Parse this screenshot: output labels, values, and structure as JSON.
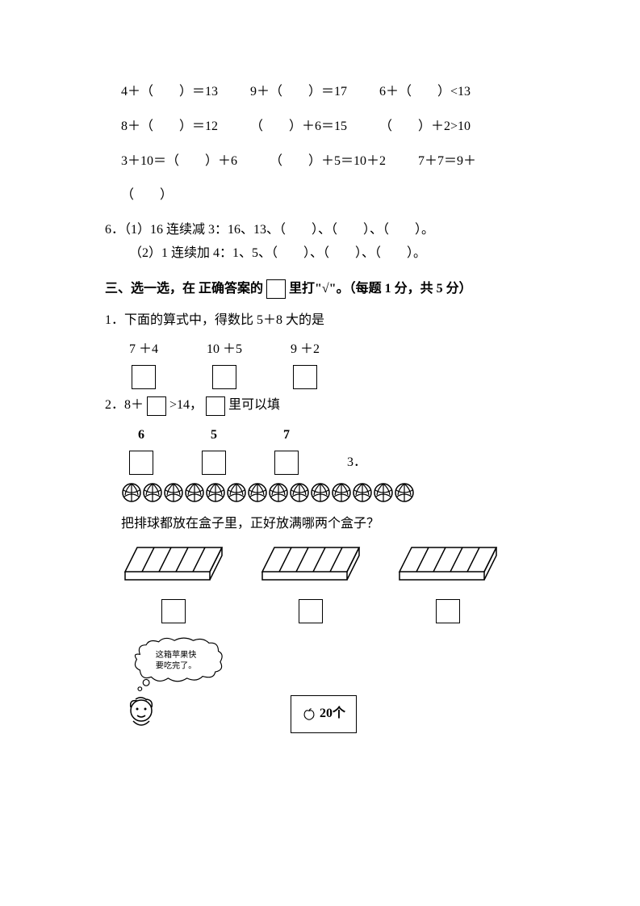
{
  "equations": {
    "row1": [
      "4＋（　　）＝13",
      "9＋（　　）＝17",
      "6＋（　　）<13"
    ],
    "row2": [
      "8＋（　　）＝12",
      "（　　）＋6＝15",
      "（　　）＋2>10"
    ],
    "row3": [
      "3＋10＝（　　）＋6",
      "（　　）＋5＝10＋2",
      "7＋7＝9＋"
    ],
    "row4": "（　　）"
  },
  "q6": {
    "prefix": "6．",
    "line1": "（1）16 连续减 3：16、13、（　　）、（　　）、（　　）。",
    "line2": "（2）1 连续加 4：1、5、（　　）、（　　）、（　　）。"
  },
  "section3": {
    "title_parts": [
      "三、选一选，在 正确答案的",
      "里打\"√\"。（每题 1 分，共 5 分）"
    ]
  },
  "q1": {
    "text": "1．下面的算式中，得数比 5＋8 大的是",
    "choices": [
      "7 ＋4",
      "10 ＋5",
      "9 ＋2"
    ]
  },
  "q2": {
    "prefix": "2．8＋",
    "mid": ">14，",
    "suffix": "里可以填",
    "choices": [
      "6",
      "5",
      "7"
    ],
    "three": "3．"
  },
  "q3": {
    "ball_count": 14,
    "text": "把排球都放在盒子里，正好放满哪两个盒子？",
    "tray_slots": [
      5,
      5,
      5
    ]
  },
  "cartoon": {
    "bubble_line1": "这箱苹果快",
    "bubble_line2": "要吃完了。",
    "box_text": "20个"
  },
  "colors": {
    "text": "#000000",
    "background": "#ffffff",
    "border": "#000000"
  }
}
